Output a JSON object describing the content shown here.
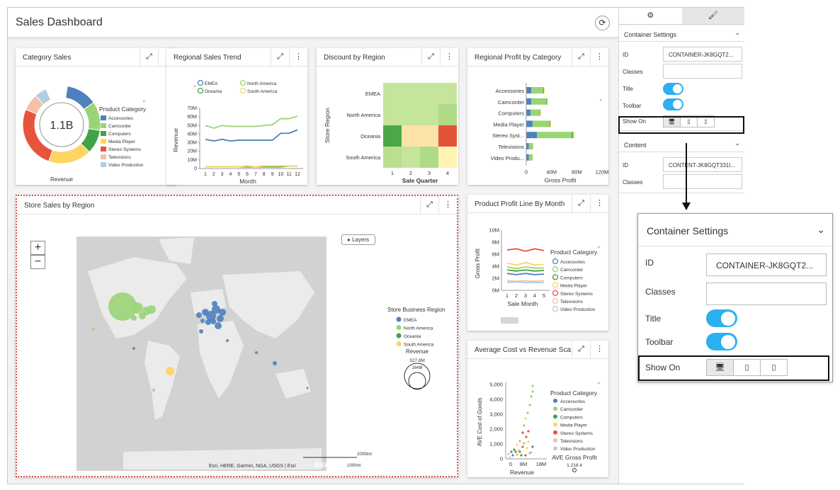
{
  "dashboard": {
    "title": "Sales Dashboard",
    "refresh_icon": "refresh-icon"
  },
  "panels": {
    "category_sales": {
      "title": "Category Sales"
    },
    "regional_trend": {
      "title": "Regional Sales Trend"
    },
    "discount": {
      "title": "Discount by Region"
    },
    "regional_profit": {
      "title": "Regional Profit by Category"
    },
    "store_sales": {
      "title": "Store Sales by Region"
    },
    "product_profit": {
      "title": "Product Profit Line By Month"
    },
    "avg_cost": {
      "title": "Average Cost vs Revenue Sca..."
    }
  },
  "category_sales_chart": {
    "center": "1.1B",
    "measure": "Revenue",
    "legend_title": "Product Category",
    "items": [
      {
        "name": "Accessories",
        "color": "#4e81bd"
      },
      {
        "name": "Camcorder",
        "color": "#9bd474"
      },
      {
        "name": "Computers",
        "color": "#40a346"
      },
      {
        "name": "Media Player",
        "color": "#fdd55f"
      },
      {
        "name": "Stereo Systems",
        "color": "#e8543b"
      },
      {
        "name": "Televisions",
        "color": "#f4c0a9"
      },
      {
        "name": "Video Production",
        "color": "#b3cde3"
      }
    ],
    "shares": [
      0.13,
      0.12,
      0.1,
      0.18,
      0.26,
      0.07,
      0.05
    ]
  },
  "trend_chart": {
    "legend": [
      {
        "name": "EMEA",
        "color": "#4e81bd"
      },
      {
        "name": "North America",
        "color": "#9bd474"
      },
      {
        "name": "Oceania",
        "color": "#40a346"
      },
      {
        "name": "South America",
        "color": "#fdd55f"
      }
    ],
    "ylabel": "Revenue",
    "xlabel": "Month",
    "yticks": [
      "70M",
      "60M",
      "50M",
      "40M",
      "30M",
      "20M",
      "10M",
      "0"
    ],
    "xticks": [
      "1",
      "2",
      "3",
      "4",
      "5",
      "6",
      "7",
      "8",
      "9",
      "10",
      "11",
      "12"
    ],
    "series": [
      {
        "name": "North America",
        "values": [
          50,
          47,
          50,
          49,
          49,
          49,
          49,
          50,
          51,
          58,
          58,
          61
        ]
      },
      {
        "name": "EMEA",
        "values": [
          34,
          32,
          34,
          32,
          33,
          33,
          33,
          33,
          33,
          41,
          41,
          45
        ]
      },
      {
        "name": "Oceania",
        "values": [
          2,
          2,
          2,
          2,
          2,
          2,
          2,
          2,
          2,
          2,
          3,
          3
        ]
      },
      {
        "name": "South America",
        "values": [
          2,
          2,
          2,
          2,
          2,
          3,
          2,
          3,
          3,
          3,
          3,
          3
        ]
      }
    ]
  },
  "discount_chart": {
    "rows": [
      "EMEA",
      "North America",
      "Oceania",
      "South America"
    ],
    "cols": [
      "1",
      "2",
      "3",
      "4"
    ],
    "ylabel": "Store Region",
    "xlabel": "Sale Quarter",
    "colors": [
      [
        "#c6e59c",
        "#c6e59c",
        "#c6e59c",
        "#c6e59c"
      ],
      [
        "#c6e59c",
        "#c6e59c",
        "#c6e59c",
        "#b0db86"
      ],
      [
        "#4aa84a",
        "#fbe3a8",
        "#fbe3a8",
        "#e2533a"
      ],
      [
        "#b9df8f",
        "#c6e59c",
        "#b0db86",
        "#fef3b3"
      ]
    ]
  },
  "profit_chart": {
    "categories": [
      "Accessories",
      "Camcorder",
      "Computers",
      "Media Player",
      "Stereo Syst...",
      "Televisions",
      "Video Produ..."
    ],
    "xlabel": "Gross Profit",
    "xticks": [
      "0",
      "40M",
      "80M",
      "120M"
    ],
    "series": [
      {
        "name": "EMEA",
        "color": "#4e81bd",
        "values": [
          8,
          8,
          7,
          10,
          17,
          4,
          4
        ]
      },
      {
        "name": "North America",
        "color": "#9bd474",
        "values": [
          19,
          24,
          14,
          27,
          55,
          6,
          5
        ]
      },
      {
        "name": "Oceania",
        "color": "#40a346",
        "values": [
          1,
          1,
          1,
          1,
          2,
          0.5,
          0.5
        ]
      },
      {
        "name": "South America",
        "color": "#fdd55f",
        "values": [
          1,
          1,
          1,
          1,
          2,
          0.5,
          0.5
        ]
      }
    ]
  },
  "map": {
    "legend_title": "Store Business Region",
    "legend": [
      {
        "name": "EMEA",
        "color": "#4e81bd"
      },
      {
        "name": "North America",
        "color": "#9bd474"
      },
      {
        "name": "Oceania",
        "color": "#40a346"
      },
      {
        "name": "South America",
        "color": "#fdd55f"
      }
    ],
    "size_title": "Revenue",
    "size_max": "327.8M",
    "size_min": "164M",
    "layers": "Layers",
    "zoom_in": "+",
    "zoom_out": "−",
    "attribution": "Esri, HERE, Garmin, NGA, USGS | Esri",
    "scale_km": "2000km",
    "scale_mi": "1000mi",
    "logo": "esri"
  },
  "product_line_chart": {
    "ylabel": "Gross Profit",
    "xlabel": "Sale Month",
    "yticks": [
      "10M",
      "8M",
      "6M",
      "4M",
      "2M",
      "0M"
    ],
    "xticks": [
      "1",
      "2",
      "3",
      "4",
      "5"
    ],
    "legend_title": "Product Category",
    "legend": [
      {
        "name": "Accessories",
        "color": "#4e81bd"
      },
      {
        "name": "Camcorder",
        "color": "#9bd474"
      },
      {
        "name": "Computers",
        "color": "#40a346"
      },
      {
        "name": "Media Player",
        "color": "#fdd55f"
      },
      {
        "name": "Stereo Systems",
        "color": "#e8543b"
      },
      {
        "name": "Televisions",
        "color": "#f4c0a9"
      },
      {
        "name": "Video Production",
        "color": "#b3cde3"
      }
    ],
    "series": [
      {
        "name": "Stereo Systems",
        "values": [
          6.7,
          6.9,
          6.5,
          6.9,
          6.6
        ]
      },
      {
        "name": "Media Player",
        "values": [
          4.5,
          4.2,
          4.6,
          4.2,
          4.3
        ]
      },
      {
        "name": "Camcorder",
        "values": [
          3.9,
          3.6,
          3.9,
          3.7,
          3.7
        ]
      },
      {
        "name": "Computers",
        "values": [
          3.4,
          3.2,
          3.4,
          3.2,
          3.3
        ]
      },
      {
        "name": "Accessories",
        "values": [
          2.8,
          2.6,
          2.8,
          2.6,
          2.7
        ]
      },
      {
        "name": "Televisions",
        "values": [
          1.6,
          1.5,
          1.6,
          1.5,
          1.6
        ]
      },
      {
        "name": "Video Production",
        "values": [
          1.3,
          1.4,
          1.3,
          1.3,
          1.3
        ]
      }
    ]
  },
  "scatter_chart": {
    "ylabel": "AVE Cost of Goods",
    "xlabel": "Revenue",
    "yticks": [
      "5,000",
      "4,000",
      "3,000",
      "2,000",
      "1,000",
      "0"
    ],
    "xticks": [
      "0",
      "8M",
      "18M"
    ],
    "legend_title": "Product Category",
    "legend": [
      {
        "name": "Accessories",
        "color": "#4e81bd"
      },
      {
        "name": "Camcorder",
        "color": "#9bd474"
      },
      {
        "name": "Computers",
        "color": "#40a346"
      },
      {
        "name": "Media Player",
        "color": "#fdd55f"
      },
      {
        "name": "Stereo Systems",
        "color": "#e8543b"
      },
      {
        "name": "Televisions",
        "color": "#f4c0a9"
      },
      {
        "name": "Video Production",
        "color": "#b3cde3"
      }
    ],
    "size_title": "AVE Gross Profit",
    "size_value": "1,218.4"
  },
  "sidebar": {
    "tab_settings_icon": "gear-icon",
    "tab_style_icon": "brush-icon",
    "container_section": "Container Settings",
    "content_section": "Content",
    "id_label": "ID",
    "id_value": "CONTAINER-JK8GQT2...",
    "classes_label": "Classes",
    "title_label": "Title",
    "toolbar_label": "Toolbar",
    "show_on_label": "Show On",
    "content_id_label": "ID",
    "content_id_value": "CONTENT-JK8GQT331I...",
    "content_classes_label": "Classes"
  },
  "zoom_panel": {
    "title": "Container Settings",
    "id_label": "ID",
    "id_value": "CONTAINER-JK8GQT2...",
    "classes_label": "Classes",
    "title_label": "Title",
    "toolbar_label": "Toolbar",
    "show_on_label": "Show On"
  }
}
